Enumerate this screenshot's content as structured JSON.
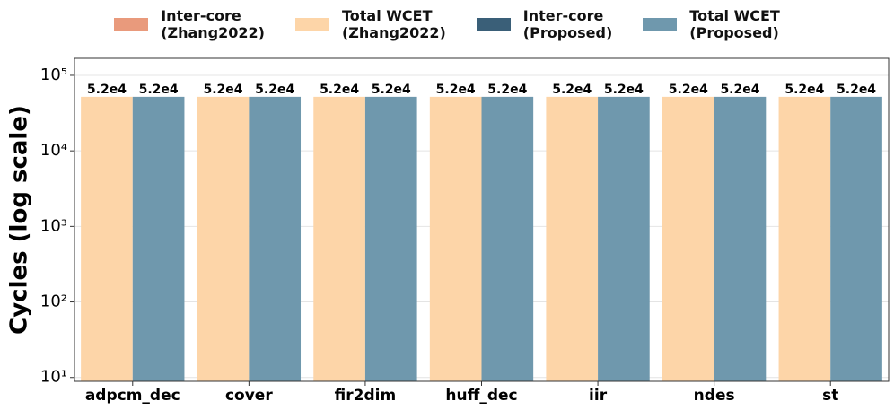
{
  "chart_data": {
    "type": "bar",
    "ylabel": "Cycles (log scale)",
    "categories": [
      "adpcm_dec",
      "cover",
      "fir2dim",
      "huff_dec",
      "iir",
      "ndes",
      "st"
    ],
    "series": [
      {
        "name": "Inter-core\n(Zhang2022)",
        "color": "#e99a7c",
        "values": [
          0,
          0,
          0,
          0,
          0,
          0,
          0
        ]
      },
      {
        "name": "Total WCET\n(Zhang2022)",
        "color": "#fdd5a8",
        "values": [
          52000,
          52000,
          52000,
          52000,
          52000,
          52000,
          52000
        ],
        "value_labels": [
          "5.2e4",
          "5.2e4",
          "5.2e4",
          "5.2e4",
          "5.2e4",
          "5.2e4",
          "5.2e4"
        ]
      },
      {
        "name": "Inter-core\n(Proposed)",
        "color": "#3a5f78",
        "values": [
          0,
          0,
          0,
          0,
          0,
          0,
          0
        ]
      },
      {
        "name": "Total WCET\n(Proposed)",
        "color": "#6f98ad",
        "values": [
          52000,
          52000,
          52000,
          52000,
          52000,
          52000,
          52000
        ],
        "value_labels": [
          "5.2e4",
          "5.2e4",
          "5.2e4",
          "5.2e4",
          "5.2e4",
          "5.2e4",
          "5.2e4"
        ]
      }
    ],
    "log_scale": true,
    "ylim": [
      8.9,
      168000
    ],
    "yticks": [
      {
        "value": 10,
        "label": "10¹"
      },
      {
        "value": 100,
        "label": "10²"
      },
      {
        "value": 1000,
        "label": "10³"
      },
      {
        "value": 10000,
        "label": "10⁴"
      },
      {
        "value": 100000,
        "label": "10⁵"
      }
    ],
    "grid": true,
    "legend": "top"
  }
}
